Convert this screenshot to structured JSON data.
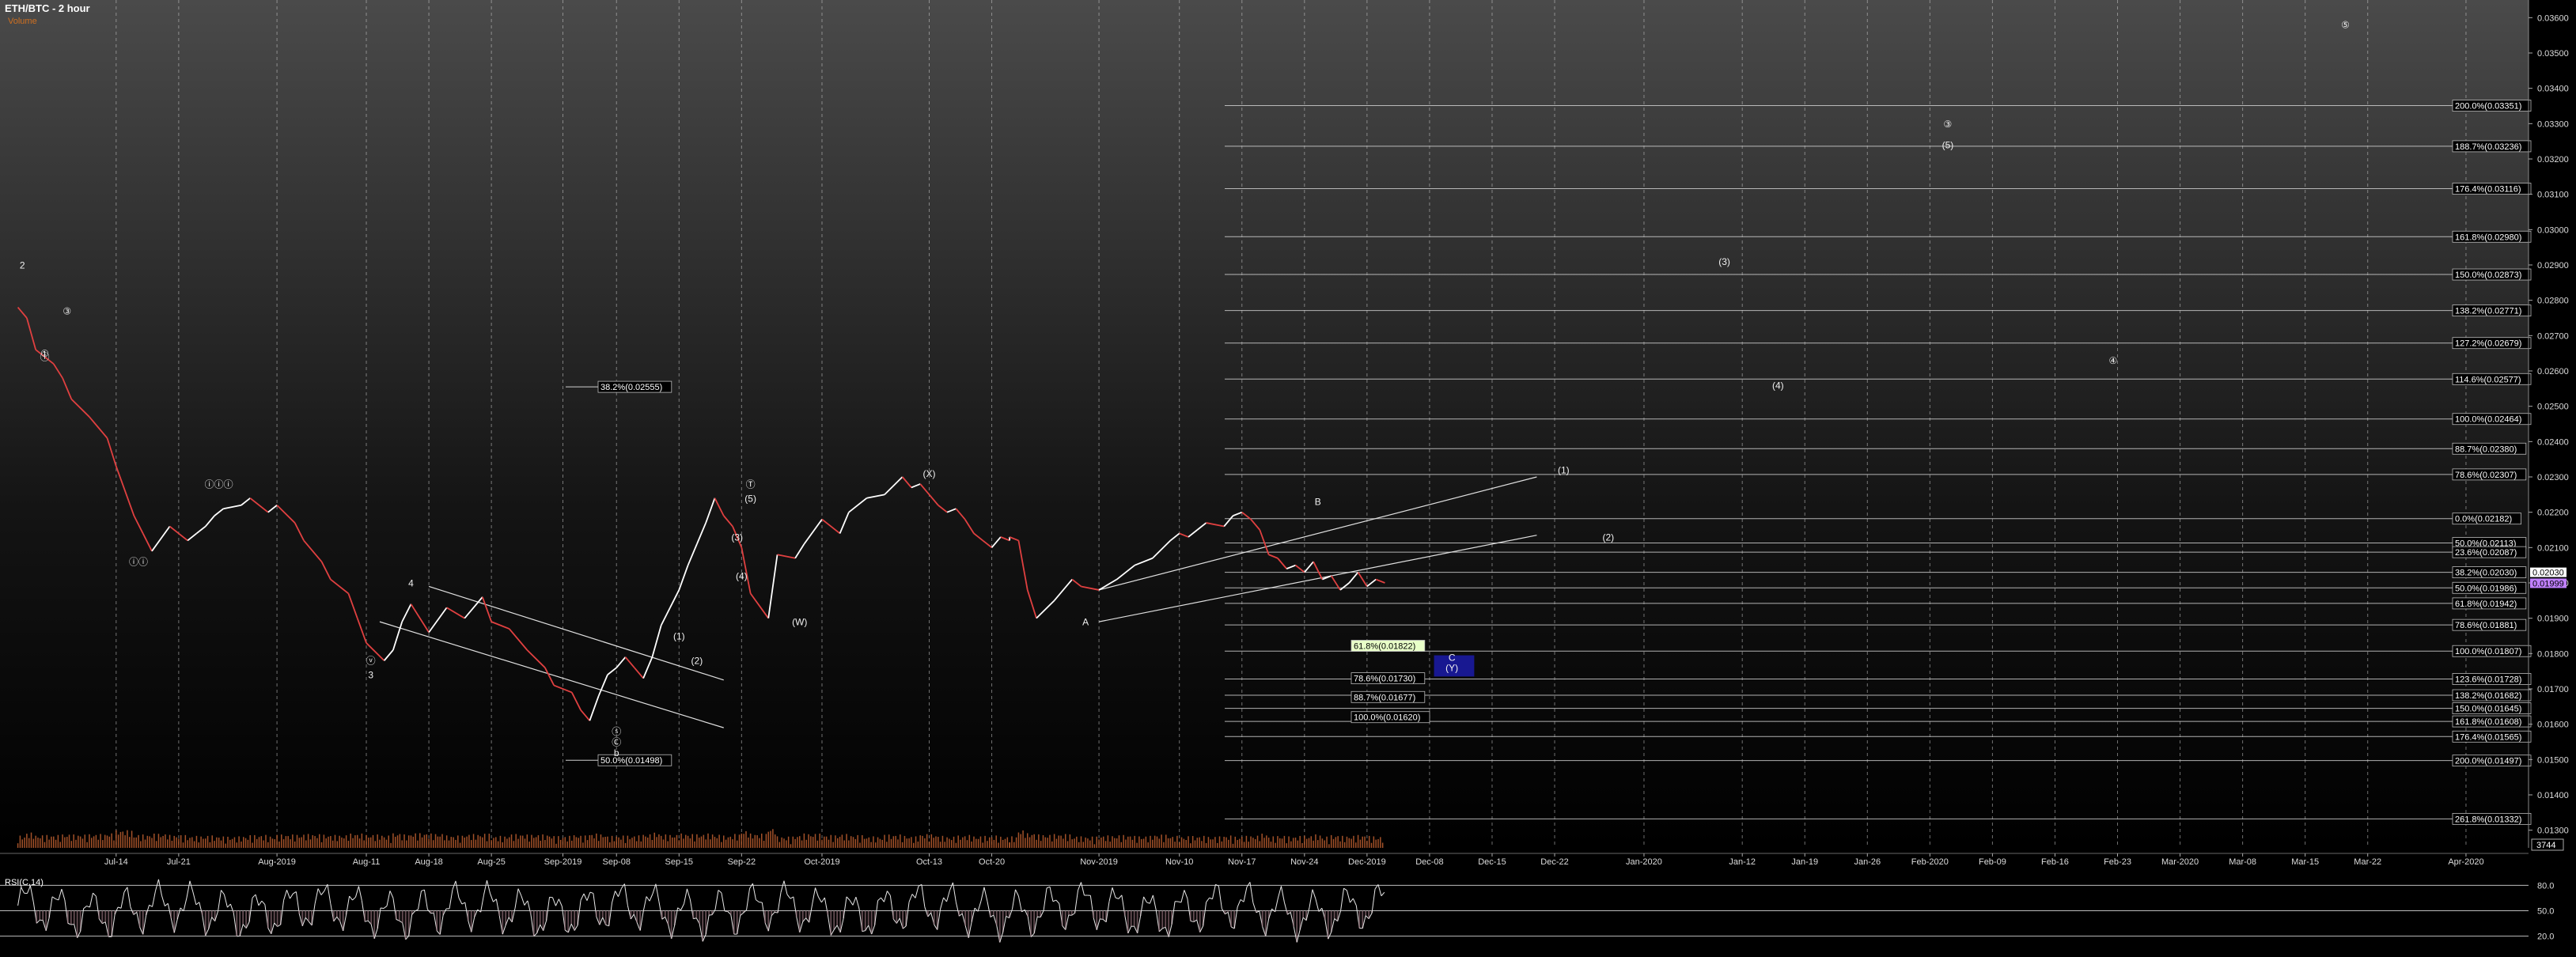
{
  "header": {
    "title": "ETH/BTC - 2 hour",
    "subtitle": "Volume"
  },
  "rsi_panel": {
    "label": "RSI(C,14)",
    "tick_labels": [
      "80.0",
      "50.0",
      "20.0"
    ],
    "levels": [
      80,
      50,
      20
    ]
  },
  "volume_readout": "3744",
  "last_price_labels": [
    "0.02030",
    "0.01999"
  ],
  "colors": {
    "background_top": "#4a4a4a",
    "background_bottom": "#000000",
    "price_up": "#ffffff",
    "price_down": "#e04040",
    "volume": "#c06030",
    "subtitle": "#d07020",
    "target_box": "#1a1aa0"
  },
  "chart_data": {
    "type": "line",
    "title": "ETH/BTC - 2 hour",
    "ylim": [
      0.0125,
      0.0365
    ],
    "price_axis_ticks": [
      "0.03600",
      "0.03500",
      "0.03400",
      "0.03300",
      "0.03200",
      "0.03100",
      "0.03000",
      "0.02900",
      "0.02800",
      "0.02700",
      "0.02600",
      "0.02500",
      "0.02400",
      "0.02300",
      "0.02200",
      "0.02100",
      "0.02000",
      "0.01900",
      "0.01800",
      "0.01700",
      "0.01600",
      "0.01500",
      "0.01400",
      "0.01300"
    ],
    "price_axis_values": [
      0.036,
      0.035,
      0.034,
      0.033,
      0.032,
      0.031,
      0.03,
      0.029,
      0.028,
      0.027,
      0.026,
      0.025,
      0.024,
      0.023,
      0.022,
      0.021,
      0.02,
      0.019,
      0.018,
      0.017,
      0.016,
      0.015,
      0.014,
      0.013
    ],
    "x_tick_labels": [
      "Jul-14",
      "Jul-21",
      "Aug-2019",
      "Aug-11",
      "Aug-18",
      "Aug-25",
      "Sep-2019",
      "Sep-08",
      "Sep-15",
      "Sep-22",
      "Oct-2019",
      "Oct-13",
      "Oct-20",
      "Nov-2019",
      "Nov-10",
      "Nov-17",
      "Nov-24",
      "Dec-2019",
      "Dec-08",
      "Dec-15",
      "Dec-22",
      "Jan-2020",
      "Jan-12",
      "Jan-19",
      "Jan-26",
      "Feb-2020",
      "Feb-09",
      "Feb-16",
      "Feb-23",
      "Mar-2020",
      "Mar-08",
      "Mar-15",
      "Mar-22",
      "Apr-2020"
    ],
    "x_tick_days": [
      11,
      18,
      29,
      39,
      46,
      53,
      61,
      67,
      74,
      81,
      90,
      102,
      109,
      121,
      130,
      137,
      144,
      151,
      158,
      165,
      172,
      182,
      193,
      200,
      207,
      214,
      221,
      228,
      235,
      242,
      249,
      256,
      263,
      274
    ],
    "x_day_range": [
      -2,
      281
    ],
    "price_series": {
      "name": "ETH/BTC",
      "days": [
        0,
        1,
        2,
        4,
        5,
        6,
        8,
        10,
        11,
        13,
        14,
        15,
        17,
        19,
        20,
        21,
        22,
        23,
        25,
        26,
        28,
        29,
        31,
        32,
        34,
        35,
        37,
        38,
        39,
        41,
        42,
        43,
        44,
        46,
        48,
        50,
        52,
        53,
        55,
        57,
        59,
        60,
        62,
        63,
        64,
        65,
        66,
        67,
        68,
        69,
        70,
        71,
        72,
        73,
        74,
        75,
        76,
        77,
        78,
        79,
        80,
        81,
        82,
        84,
        85,
        87,
        88,
        90,
        92,
        93,
        95,
        97,
        99,
        100,
        101,
        103,
        104,
        105,
        106,
        107,
        108,
        109,
        110,
        111,
        111,
        112,
        113,
        114,
        116,
        118,
        119,
        121,
        123,
        125,
        127,
        129,
        130,
        131,
        132,
        133,
        135,
        136,
        137,
        138,
        139,
        140,
        141,
        142,
        143,
        144,
        145,
        146,
        147,
        148,
        149,
        150,
        151,
        152,
        153
      ],
      "values": [
        0.0278,
        0.0275,
        0.0266,
        0.0262,
        0.0258,
        0.0252,
        0.0247,
        0.0241,
        0.0233,
        0.0219,
        0.0214,
        0.0209,
        0.0216,
        0.0212,
        0.0214,
        0.0216,
        0.0219,
        0.0221,
        0.0222,
        0.0224,
        0.022,
        0.0222,
        0.0217,
        0.0212,
        0.0206,
        0.0201,
        0.0197,
        0.019,
        0.0183,
        0.0178,
        0.0181,
        0.0189,
        0.0194,
        0.0186,
        0.0193,
        0.019,
        0.0196,
        0.0189,
        0.0187,
        0.0181,
        0.0176,
        0.0171,
        0.0169,
        0.0164,
        0.0161,
        0.0168,
        0.0174,
        0.0176,
        0.0179,
        0.0176,
        0.0173,
        0.0179,
        0.0188,
        0.0193,
        0.0198,
        0.0205,
        0.0211,
        0.0217,
        0.0224,
        0.0219,
        0.0216,
        0.021,
        0.0197,
        0.019,
        0.0208,
        0.0207,
        0.0211,
        0.0218,
        0.0214,
        0.022,
        0.0224,
        0.0225,
        0.023,
        0.0227,
        0.0228,
        0.0222,
        0.022,
        0.0221,
        0.0218,
        0.0214,
        0.0212,
        0.021,
        0.0213,
        0.0212,
        0.0213,
        0.0212,
        0.0198,
        0.019,
        0.0195,
        0.0201,
        0.0199,
        0.0198,
        0.0201,
        0.0205,
        0.0207,
        0.0212,
        0.0214,
        0.0213,
        0.0215,
        0.0217,
        0.0216,
        0.0219,
        0.022,
        0.0218,
        0.0215,
        0.0208,
        0.0207,
        0.0204,
        0.0205,
        0.0203,
        0.0206,
        0.0201,
        0.0202,
        0.0198,
        0.02,
        0.0203,
        0.0199,
        0.0201,
        0.02
      ]
    },
    "wave_labels": [
      {
        "text": "2",
        "day": 0.5,
        "y": 0.0289,
        "circle": false
      },
      {
        "text": "①",
        "day": 3,
        "y": 0.0264,
        "circle": false
      },
      {
        "text": "ⓘ",
        "day": 3,
        "y": 0.0263,
        "circle": false
      },
      {
        "text": "③",
        "day": 5.5,
        "y": 0.0276,
        "circle": false
      },
      {
        "text": "ⓘⓘ",
        "day": 13.5,
        "y": 0.0205,
        "circle": false
      },
      {
        "text": "ⓘⓘⓘ",
        "day": 22.5,
        "y": 0.0227,
        "circle": false
      },
      {
        "text": "4",
        "day": 44,
        "y": 0.0199,
        "circle": false
      },
      {
        "text": "ⓥ",
        "day": 39.5,
        "y": 0.0177,
        "circle": false
      },
      {
        "text": "3",
        "day": 39.5,
        "y": 0.0173,
        "circle": false
      },
      {
        "text": "(1)",
        "day": 74,
        "y": 0.0184,
        "circle": false
      },
      {
        "text": "(2)",
        "day": 76,
        "y": 0.0177,
        "circle": false
      },
      {
        "text": "(3)",
        "day": 80.5,
        "y": 0.0212,
        "circle": false
      },
      {
        "text": "(4)",
        "day": 81,
        "y": 0.0201,
        "circle": false
      },
      {
        "text": "Ⓣ",
        "day": 82,
        "y": 0.0227,
        "circle": false
      },
      {
        "text": "(5)",
        "day": 82,
        "y": 0.0223,
        "circle": false
      },
      {
        "text": "(W)",
        "day": 87.5,
        "y": 0.0188,
        "circle": false
      },
      {
        "text": "(X)",
        "day": 102,
        "y": 0.023,
        "circle": false
      },
      {
        "text": "A",
        "day": 119.5,
        "y": 0.0188,
        "circle": false
      },
      {
        "text": "B",
        "day": 145.5,
        "y": 0.0222,
        "circle": false
      },
      {
        "text": "ⓢ",
        "day": 67,
        "y": 0.0157,
        "circle": false
      },
      {
        "text": "Ⓒ",
        "day": 67,
        "y": 0.0154,
        "circle": false
      },
      {
        "text": "b",
        "day": 67,
        "y": 0.0151,
        "circle": false
      },
      {
        "text": "(1)",
        "day": 173,
        "y": 0.0231,
        "circle": false
      },
      {
        "text": "(2)",
        "day": 178,
        "y": 0.0212,
        "circle": false
      },
      {
        "text": "(3)",
        "day": 191,
        "y": 0.029,
        "circle": false
      },
      {
        "text": "(4)",
        "day": 197,
        "y": 0.0255,
        "circle": false
      },
      {
        "text": "③",
        "day": 216,
        "y": 0.0329,
        "circle": false
      },
      {
        "text": "(5)",
        "day": 216,
        "y": 0.0323,
        "circle": false
      },
      {
        "text": "④",
        "day": 234.5,
        "y": 0.0262,
        "circle": false
      },
      {
        "text": "⑤",
        "day": 260.5,
        "y": 0.0357,
        "circle": false
      },
      {
        "text": "C",
        "day": 160.5,
        "y": 0.0178,
        "circle": false
      },
      {
        "text": "(Y)",
        "day": 160.5,
        "y": 0.0175,
        "circle": false
      }
    ],
    "fib_levels_right": [
      {
        "label": "200.0%(0.03351)",
        "value": 0.03351
      },
      {
        "label": "188.7%(0.03236)",
        "value": 0.03236
      },
      {
        "label": "176.4%(0.03116)",
        "value": 0.03116
      },
      {
        "label": "161.8%(0.02980)",
        "value": 0.0298
      },
      {
        "label": "150.0%(0.02873)",
        "value": 0.02873
      },
      {
        "label": "138.2%(0.02771)",
        "value": 0.02771
      },
      {
        "label": "127.2%(0.02679)",
        "value": 0.02679
      },
      {
        "label": "114.6%(0.02577)",
        "value": 0.02577
      },
      {
        "label": "100.0%(0.02464)",
        "value": 0.02464
      },
      {
        "label": "88.7%(0.02380)",
        "value": 0.0238
      },
      {
        "label": "78.6%(0.02307)",
        "value": 0.02307
      },
      {
        "label": "0.0%(0.02182)",
        "value": 0.02182
      },
      {
        "label": "50.0%(0.02113)",
        "value": 0.02113
      },
      {
        "label": "23.6%(0.02087)",
        "value": 0.02087
      },
      {
        "label": "38.2%(0.02030)",
        "value": 0.0203
      },
      {
        "label": "50.0%(0.01986)",
        "value": 0.01986
      },
      {
        "label": "61.8%(0.01942)",
        "value": 0.01942
      },
      {
        "label": "78.6%(0.01881)",
        "value": 0.01881
      },
      {
        "label": "100.0%(0.01807)",
        "value": 0.01807
      },
      {
        "label": "123.6%(0.01728)",
        "value": 0.01728
      },
      {
        "label": "138.2%(0.01682)",
        "value": 0.01682
      },
      {
        "label": "150.0%(0.01645)",
        "value": 0.01645
      },
      {
        "label": "161.8%(0.01608)",
        "value": 0.01608
      },
      {
        "label": "176.4%(0.01565)",
        "value": 0.01565
      },
      {
        "label": "200.0%(0.01497)",
        "value": 0.01497
      },
      {
        "label": "261.8%(0.01332)",
        "value": 0.01332
      }
    ],
    "fib_levels_mid": [
      {
        "label": "61.8%(0.01822)",
        "value": 0.01822,
        "highlight": true
      },
      {
        "label": "78.6%(0.01730)",
        "value": 0.0173,
        "highlight": false
      },
      {
        "label": "88.7%(0.01677)",
        "value": 0.01677,
        "highlight": false
      },
      {
        "label": "100.0%(0.01620)",
        "value": 0.0162,
        "highlight": false
      }
    ],
    "fib_levels_left": [
      {
        "label": "38.2%(0.02555)",
        "value": 0.02555
      },
      {
        "label": "50.0%(0.01498)",
        "value": 0.01498
      }
    ],
    "target_box": {
      "day_start": 158.5,
      "day_end": 163,
      "y_top": 0.01795,
      "y_bottom": 0.01735
    }
  }
}
